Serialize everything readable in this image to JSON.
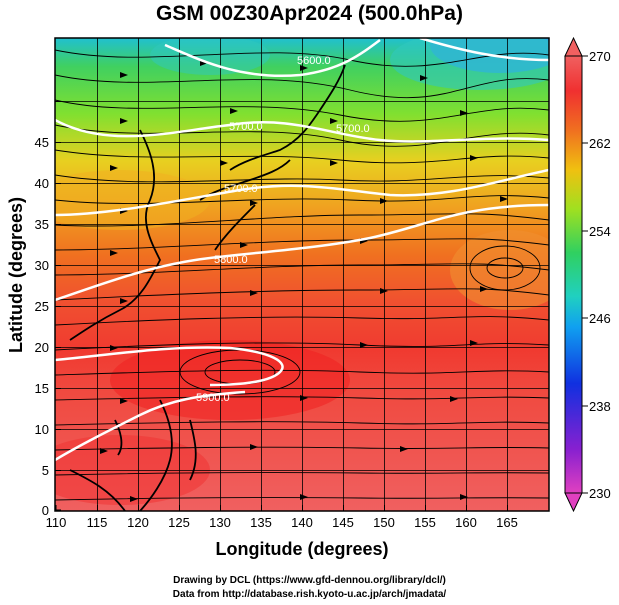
{
  "title": "GSM 00Z30Apr2024 (500.0hPa)",
  "xlabel": "Longitude (degrees)",
  "ylabel": "Latitude  (degrees)",
  "x_ticks": [
    "110",
    "115",
    "120",
    "125",
    "130",
    "135",
    "140",
    "145",
    "150",
    "155",
    "160",
    "165"
  ],
  "y_ticks": [
    "0",
    "5",
    "10",
    "15",
    "20",
    "25",
    "30",
    "35",
    "40",
    "45"
  ],
  "colorbar": {
    "labels": [
      "230",
      "238",
      "246",
      "254",
      "262",
      "270"
    ],
    "colors": [
      "#e040c0",
      "#8820d0",
      "#1030e0",
      "#10a0f0",
      "#20d0c0",
      "#30d060",
      "#80e020",
      "#d8e020",
      "#f0a010",
      "#f06020",
      "#f03030",
      "#f07070"
    ]
  },
  "contours": [
    "5600.0",
    "5700.0",
    "5700.0",
    "5800.0",
    "5900.0"
  ],
  "credits": [
    "Drawing by DCL (https://www.gfd-dennou.org/library/dcl/)",
    "Data from http://database.rish.kyoto-u.ac.jp/arch/jmadata/"
  ],
  "chart_data": {
    "type": "heatmap",
    "title": "GSM 00Z30Apr2024 (500.0hPa)",
    "xlabel": "Longitude (degrees)",
    "ylabel": "Latitude  (degrees)",
    "xlim": [
      110,
      170
    ],
    "ylim": [
      0,
      50
    ],
    "color_range": [
      230,
      270
    ],
    "field": "temperature (shaded), geopotential height (white contours), wind (streamlines)",
    "contour_values": [
      5600,
      5700,
      5800,
      5900
    ]
  }
}
